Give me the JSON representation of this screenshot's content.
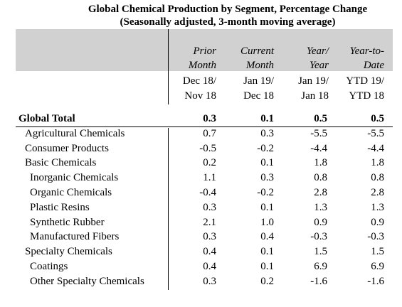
{
  "title": "Global Chemical Production by Segment, Percentage Change",
  "subtitle": "(Seasonally adjusted, 3-month moving average)",
  "columns": [
    {
      "header_line1": "Prior",
      "header_line2": "Month",
      "sub_line1": "Dec 18/",
      "sub_line2": "Nov 18"
    },
    {
      "header_line1": "Current",
      "header_line2": "Month",
      "sub_line1": "Jan 19/",
      "sub_line2": "Dec 18"
    },
    {
      "header_line1": "Year/",
      "header_line2": "Year",
      "sub_line1": "Jan 19/",
      "sub_line2": "Jan 18"
    },
    {
      "header_line1": "Year-to-",
      "header_line2": "Date",
      "sub_line1": "YTD 19/",
      "sub_line2": "YTD 18"
    }
  ],
  "rows": [
    {
      "label": "Global Total",
      "values": [
        "0.3",
        "0.1",
        "0.5",
        "0.5"
      ]
    },
    {
      "label": "Agricultural Chemicals",
      "values": [
        "0.7",
        "0.3",
        "-5.5",
        "-5.5"
      ]
    },
    {
      "label": "Consumer Products",
      "values": [
        "-0.5",
        "-0.2",
        "-4.4",
        "-4.4"
      ]
    },
    {
      "label": "Basic Chemicals",
      "values": [
        "0.2",
        "0.1",
        "1.8",
        "1.8"
      ]
    },
    {
      "label": "Inorganic Chemicals",
      "values": [
        "1.1",
        "0.3",
        "0.8",
        "0.8"
      ]
    },
    {
      "label": "Organic Chemicals",
      "values": [
        "-0.4",
        "-0.2",
        "2.8",
        "2.8"
      ]
    },
    {
      "label": "Plastic Resins",
      "values": [
        "0.3",
        "0.1",
        "1.3",
        "1.3"
      ]
    },
    {
      "label": "Synthetic Rubber",
      "values": [
        "2.1",
        "1.0",
        "0.9",
        "0.9"
      ]
    },
    {
      "label": "Manufactured Fibers",
      "values": [
        "0.3",
        "0.4",
        "-0.3",
        "-0.3"
      ]
    },
    {
      "label": "Specialty Chemicals",
      "values": [
        "0.4",
        "0.1",
        "1.5",
        "1.5"
      ]
    },
    {
      "label": "Coatings",
      "values": [
        "0.4",
        "0.1",
        "6.9",
        "6.9"
      ]
    },
    {
      "label": "Other Specialty Chemicals",
      "values": [
        "0.3",
        "0.2",
        "-1.6",
        "-1.6"
      ]
    }
  ],
  "colors": {
    "header_band": "#d1d1d1"
  }
}
